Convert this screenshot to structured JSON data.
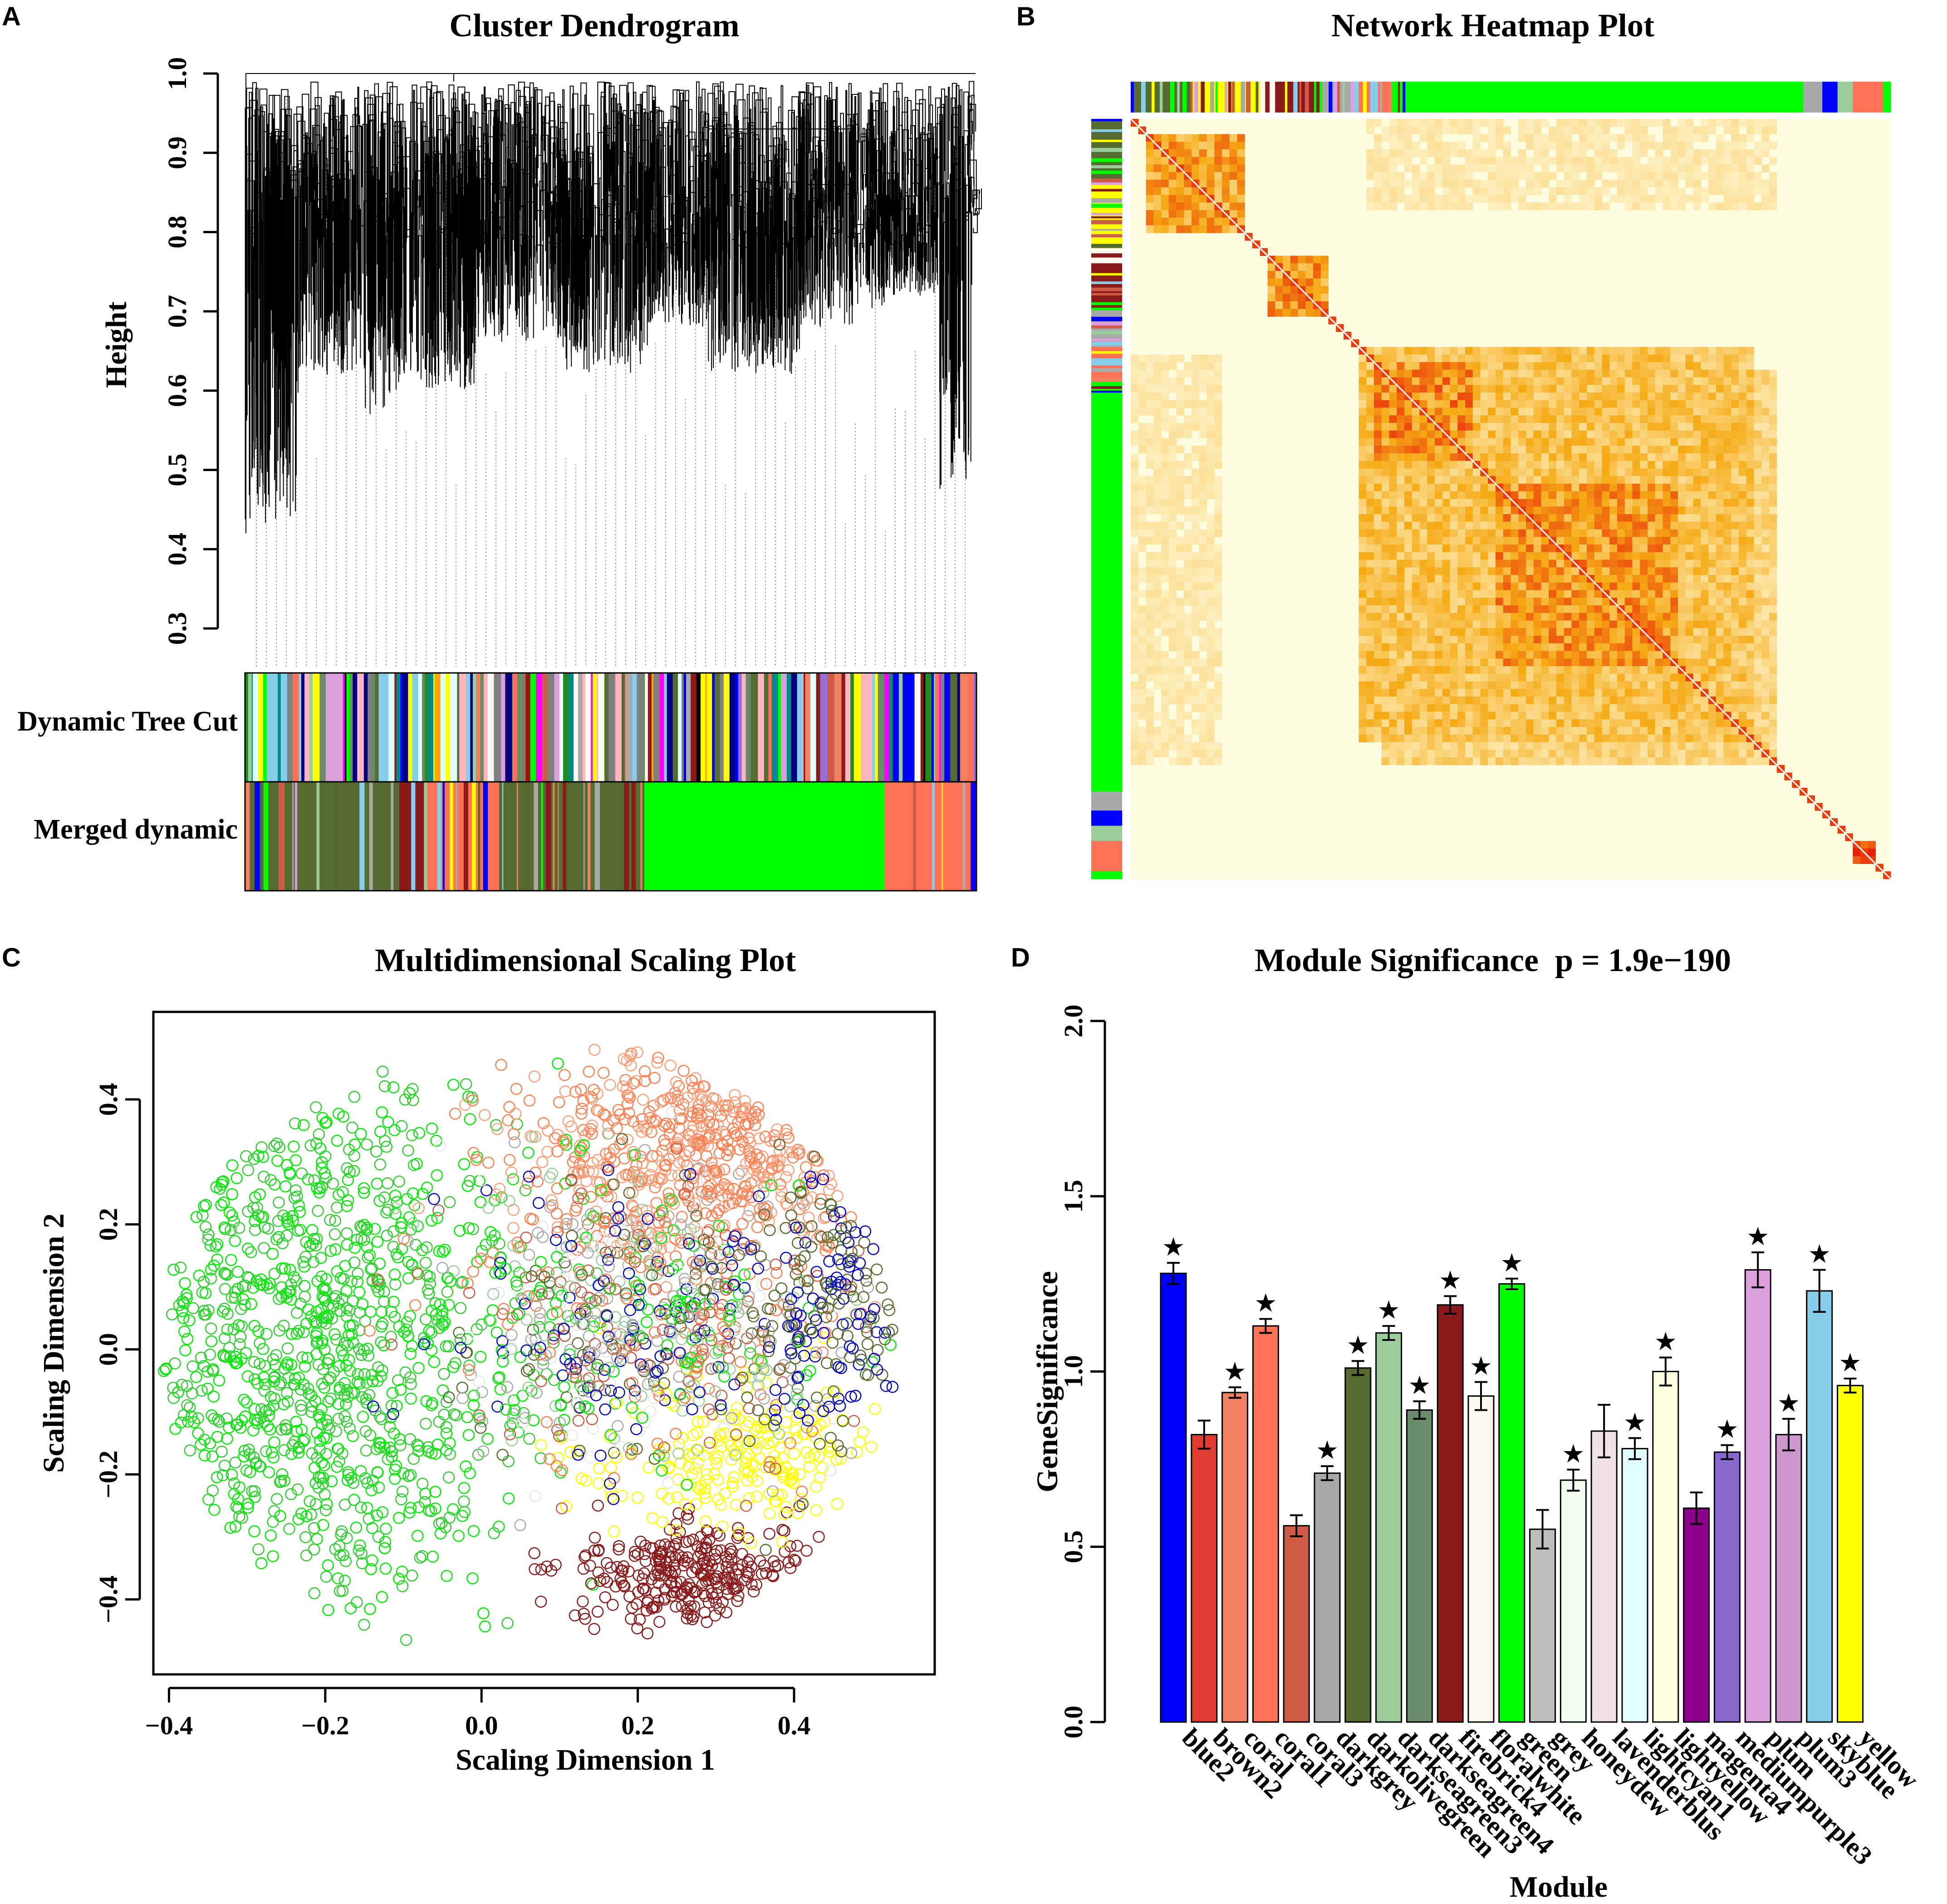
{
  "panels": {
    "A": {
      "letter": "A",
      "chart_data": {
        "type": "dendrogram",
        "title": "Cluster Dendrogram",
        "ylabel": "Height",
        "ylim": [
          0.3,
          1.0
        ],
        "yticks": [
          "0.3",
          "0.4",
          "0.5",
          "0.6",
          "0.7",
          "0.8",
          "0.9",
          "1.0"
        ],
        "color_rows": [
          "Dynamic Tree Cut",
          "Merged dynamic"
        ]
      }
    },
    "B": {
      "letter": "B",
      "chart_data": {
        "type": "heatmap",
        "title": "Network Heatmap Plot",
        "color_low": "#fffde0",
        "color_high": "#e8200a"
      }
    },
    "C": {
      "letter": "C",
      "chart_data": {
        "type": "scatter",
        "title": "Multidimensional Scaling Plot",
        "xlabel": "Scaling Dimension 1",
        "ylabel": "Scaling Dimension 2",
        "xlim": [
          -0.42,
          0.58
        ],
        "ylim": [
          -0.52,
          0.54
        ],
        "xticks": [
          "-0.4",
          "-0.2",
          "0.0",
          "0.2",
          "0.4"
        ],
        "yticks": [
          "-0.4",
          "-0.2",
          "0.0",
          "0.2",
          "0.4"
        ]
      }
    },
    "D": {
      "letter": "D",
      "chart_data": {
        "type": "bar",
        "title": "Module Significance  p = 1.9e−190",
        "xlabel": "Module",
        "ylabel": "GeneSignificance",
        "ylim": [
          0.0,
          2.0
        ],
        "yticks": [
          "0.0",
          "0.5",
          "1.0",
          "1.5",
          "2.0"
        ],
        "star_symbol": "★",
        "categories": [
          "blue2",
          "brown2",
          "coral",
          "coral1",
          "coral3",
          "darkgrey",
          "darkolivegreen",
          "darkseagreen3",
          "darkseagreen4",
          "firebrick4",
          "floralwhite",
          "green",
          "grey",
          "honeydew",
          "lavenderblus",
          "lightcyan1",
          "lightyellow",
          "magenta4",
          "mediumpurple3",
          "plum",
          "plum3",
          "skyblue",
          "yellow"
        ],
        "values": [
          1.28,
          0.82,
          0.94,
          1.13,
          0.56,
          0.71,
          1.01,
          1.11,
          0.89,
          1.19,
          0.93,
          1.25,
          0.55,
          0.69,
          0.83,
          0.78,
          1.0,
          0.61,
          0.77,
          1.29,
          0.82,
          1.23,
          0.96
        ],
        "errors": [
          0.03,
          0.04,
          0.015,
          0.02,
          0.03,
          0.02,
          0.02,
          0.02,
          0.025,
          0.025,
          0.04,
          0.015,
          0.055,
          0.03,
          0.075,
          0.03,
          0.04,
          0.045,
          0.02,
          0.05,
          0.045,
          0.06,
          0.02
        ],
        "significant": [
          true,
          false,
          true,
          true,
          false,
          true,
          true,
          true,
          true,
          true,
          true,
          true,
          false,
          true,
          false,
          true,
          true,
          false,
          true,
          true,
          true,
          true,
          true
        ],
        "colors": [
          "#0000ff",
          "#e03c31",
          "#f08060",
          "#ff7256",
          "#cd5b45",
          "#a9a9a9",
          "#556b2f",
          "#9bcd9b",
          "#698b69",
          "#8b1a1a",
          "#fffaf0",
          "#00ff00",
          "#bebebe",
          "#f0fff0",
          "#f0e0e8",
          "#e0ffff",
          "#ffffe0",
          "#8b008b",
          "#8968cd",
          "#dda0dd",
          "#cd96cd",
          "#87ceeb",
          "#ffff00"
        ]
      }
    }
  },
  "palette": {
    "modules": [
      "#556b2f",
      "#ff7256",
      "#00ff00",
      "#a9a9a9",
      "#8b1a1a",
      "#ffff00",
      "#0000ff",
      "#cd5b45",
      "#9bcd9b",
      "#dda0dd",
      "#87ceeb",
      "#f08060",
      "#698b69",
      "#e0ffff",
      "#ff00ff",
      "#000080",
      "#ffa500",
      "#ffb6c1",
      "#008b8b",
      "#228b22",
      "#9370db",
      "#000000",
      "#808080",
      "#fffaf0"
    ],
    "scatter_colors": [
      "#00ee00",
      "#32cd32",
      "#ff7f50",
      "#ffa07a",
      "#8b1a1a",
      "#0000cd",
      "#556b2f",
      "#a9a9a9",
      "#ffff00",
      "#e8e8e8",
      "#9bcd9b",
      "#cd5b45"
    ]
  }
}
